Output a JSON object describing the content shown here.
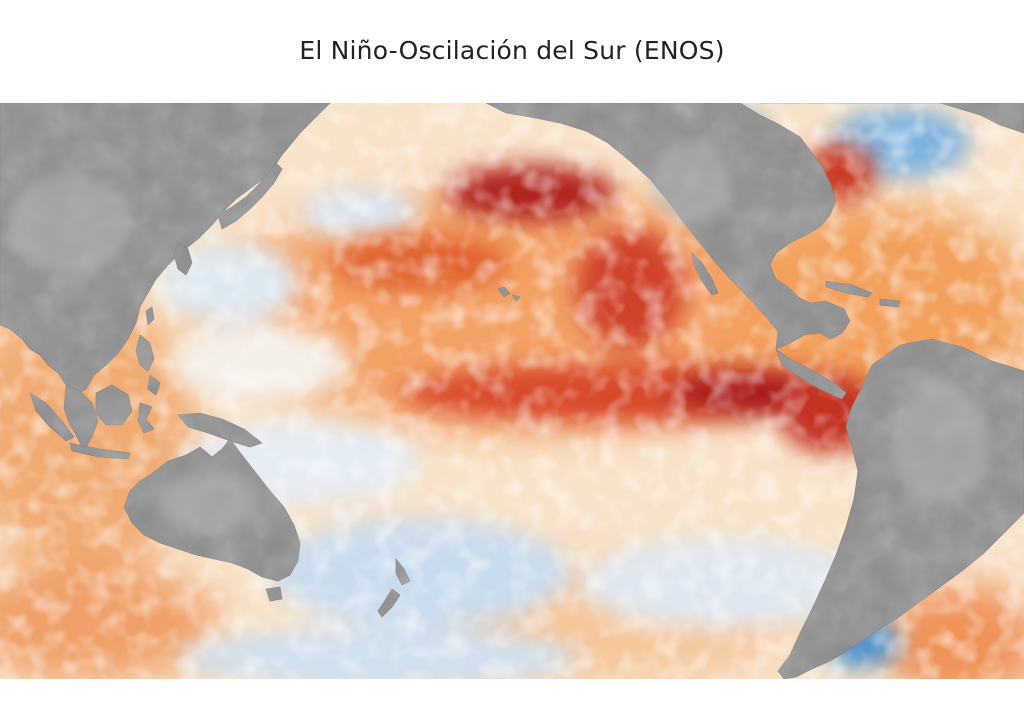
{
  "title": "El Niño-Oscilación del Sur (ENOS)",
  "map": {
    "subject": "sea-surface-temperature-anomaly",
    "region": "Pacific Ocean",
    "colors": {
      "land": "#8e8e8e",
      "land_light": "#b4b4b4",
      "anomaly_extreme_warm": "#8b0a12",
      "anomaly_strong_warm": "#c9301f",
      "anomaly_warm": "#ee7a3c",
      "anomaly_mild_warm": "#f7b980",
      "anomaly_neutral": "#fbf3ea",
      "anomaly_mild_cool": "#cfe0f0",
      "anomaly_cool": "#5a9ed0",
      "anomaly_strong_cool": "#1d5fa8"
    }
  }
}
